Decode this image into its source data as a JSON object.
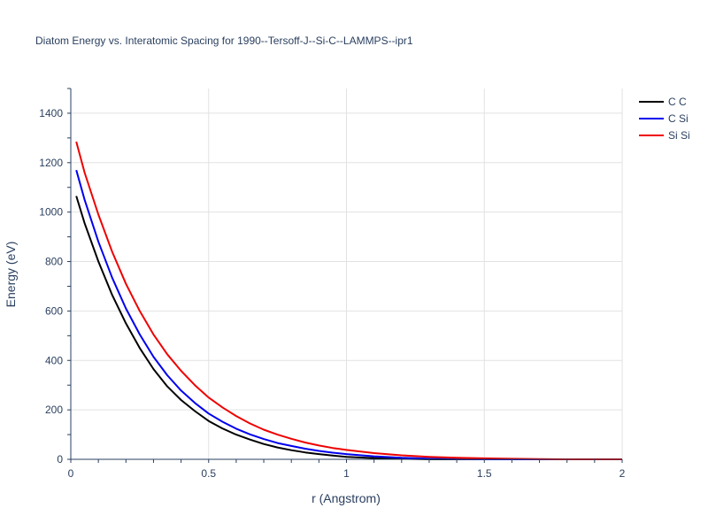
{
  "chart_data": {
    "type": "line",
    "title": "Diatom Energy vs. Interatomic Spacing for 1990--Tersoff-J--Si-C--LAMMPS--ipr1",
    "xlabel": "r (Angstrom)",
    "ylabel": "Energy (eV)",
    "xlim": [
      0,
      2
    ],
    "ylim": [
      0,
      1500
    ],
    "x_ticks": [
      0,
      0.5,
      1,
      1.5,
      2
    ],
    "x_tick_labels": [
      "0",
      "0.5",
      "1",
      "1.5",
      "2"
    ],
    "y_ticks": [
      0,
      200,
      400,
      600,
      800,
      1000,
      1200,
      1400
    ],
    "y_tick_labels": [
      "0",
      "200",
      "400",
      "600",
      "800",
      "1000",
      "1200",
      "1400"
    ],
    "grid": true,
    "legend_position": "top-right",
    "x": [
      0.02,
      0.05,
      0.1,
      0.15,
      0.2,
      0.25,
      0.3,
      0.35,
      0.4,
      0.45,
      0.5,
      0.55,
      0.6,
      0.65,
      0.7,
      0.75,
      0.8,
      0.85,
      0.9,
      0.95,
      1.0,
      1.1,
      1.2,
      1.3,
      1.4,
      1.5,
      1.6,
      1.7,
      1.8,
      1.9,
      2.0
    ],
    "series": [
      {
        "name": "C C",
        "color": "#000000",
        "values": [
          1065,
          955,
          800,
          665,
          550,
          450,
          365,
          295,
          240,
          195,
          155,
          125,
          100,
          80,
          62,
          48,
          37,
          28,
          21,
          15,
          10,
          5,
          2,
          0,
          0,
          0,
          0,
          0,
          0,
          0,
          0
        ]
      },
      {
        "name": "C Si",
        "color": "#0000ee",
        "values": [
          1170,
          1050,
          880,
          735,
          610,
          505,
          415,
          340,
          278,
          228,
          185,
          152,
          124,
          101,
          82,
          66,
          54,
          43,
          34,
          27,
          21,
          12,
          6,
          3,
          1,
          0,
          0,
          0,
          0,
          0,
          0
        ]
      },
      {
        "name": "Si Si",
        "color": "#ee0000",
        "values": [
          1285,
          1160,
          990,
          840,
          710,
          600,
          505,
          425,
          358,
          300,
          250,
          210,
          175,
          145,
          120,
          100,
          83,
          68,
          56,
          46,
          38,
          25,
          16,
          10,
          6,
          4,
          2,
          1,
          0,
          0,
          0
        ]
      }
    ]
  }
}
